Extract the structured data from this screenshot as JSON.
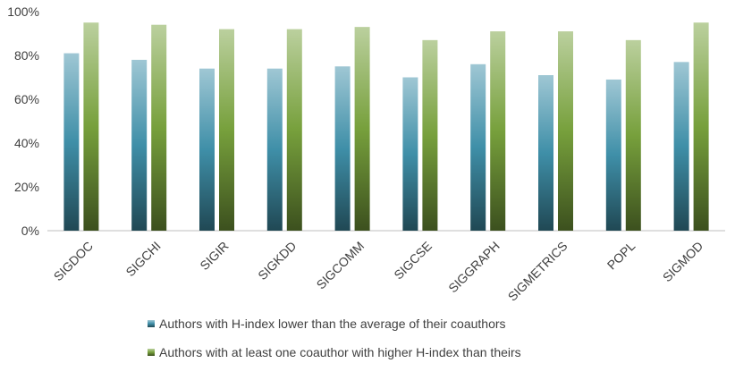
{
  "chart_data": {
    "type": "bar",
    "categories": [
      "SIGDOC",
      "SIGCHI",
      "SIGIR",
      "SIGKDD",
      "SIGCOMM",
      "SIGCSE",
      "SIGGRAPH",
      "SIGMETRICS",
      "POPL",
      "SIGMOD"
    ],
    "series": [
      {
        "name": "Authors with H-index lower than the average of their coauthors",
        "color": "#3f8fa8",
        "values": [
          81,
          78,
          74,
          74,
          75,
          70,
          76,
          71,
          69,
          77
        ]
      },
      {
        "name": "Authors with at least one coauthor with higher H-index than theirs",
        "color": "#77a03c",
        "values": [
          95,
          94,
          92,
          92,
          93,
          87,
          91,
          91,
          87,
          95
        ]
      }
    ],
    "ylim": [
      0,
      100
    ],
    "yticks": [
      {
        "value": 0,
        "label": "0%"
      },
      {
        "value": 20,
        "label": "20%"
      },
      {
        "value": 40,
        "label": "40%"
      },
      {
        "value": 60,
        "label": "60%"
      },
      {
        "value": 80,
        "label": "80%"
      },
      {
        "value": 100,
        "label": "100%"
      }
    ],
    "grid": false,
    "legend": "bottom"
  }
}
